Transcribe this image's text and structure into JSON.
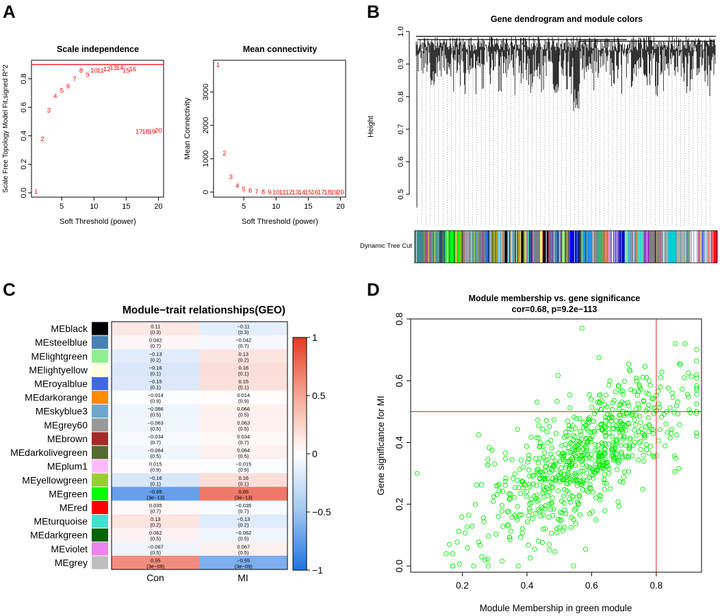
{
  "panels": {
    "A": {
      "letter": "A",
      "scale": {
        "type": "scatter-labels",
        "title": "Scale independence",
        "xlabel": "Soft Threshold (power)",
        "ylabel": "Scale Free Topology Model Fit,signed R^2",
        "xlim": [
          0.3,
          20.8
        ],
        "ylim": [
          -0.03,
          0.93
        ],
        "xticks": [
          5,
          10,
          15,
          20
        ],
        "yticks": [
          0.0,
          0.2,
          0.4,
          0.6,
          0.8
        ],
        "cutoff_line": 0.9,
        "points": [
          {
            "power": 1,
            "value": 0.01
          },
          {
            "power": 2,
            "value": 0.38
          },
          {
            "power": 3,
            "value": 0.58
          },
          {
            "power": 4,
            "value": 0.68
          },
          {
            "power": 5,
            "value": 0.72
          },
          {
            "power": 6,
            "value": 0.75
          },
          {
            "power": 7,
            "value": 0.8
          },
          {
            "power": 8,
            "value": 0.86
          },
          {
            "power": 9,
            "value": 0.83
          },
          {
            "power": 10,
            "value": 0.86
          },
          {
            "power": 11,
            "value": 0.86
          },
          {
            "power": 12,
            "value": 0.87
          },
          {
            "power": 13,
            "value": 0.88
          },
          {
            "power": 14,
            "value": 0.88
          },
          {
            "power": 15,
            "value": 0.86
          },
          {
            "power": 16,
            "value": 0.87
          },
          {
            "power": 17,
            "value": 0.43
          },
          {
            "power": 18,
            "value": 0.43
          },
          {
            "power": 19,
            "value": 0.43
          },
          {
            "power": 20,
            "value": 0.44
          }
        ]
      },
      "connectivity": {
        "type": "scatter-labels",
        "title": "Mean connectivity",
        "xlabel": "Soft Threshold (power)",
        "ylabel": "Mean Connectivity",
        "xlim": [
          0.3,
          20.8
        ],
        "ylim": [
          -150,
          3950
        ],
        "xticks": [
          5,
          10,
          15,
          20
        ],
        "yticks": [
          0,
          1000,
          2000,
          3000
        ],
        "points": [
          {
            "power": 1,
            "value": 3820
          },
          {
            "power": 2,
            "value": 1170
          },
          {
            "power": 3,
            "value": 460
          },
          {
            "power": 4,
            "value": 200
          },
          {
            "power": 5,
            "value": 100
          },
          {
            "power": 6,
            "value": 50
          },
          {
            "power": 7,
            "value": 25
          },
          {
            "power": 8,
            "value": 12
          },
          {
            "power": 9,
            "value": 6
          },
          {
            "power": 10,
            "value": 3
          },
          {
            "power": 11,
            "value": 2
          },
          {
            "power": 12,
            "value": 1
          },
          {
            "power": 13,
            "value": 0
          },
          {
            "power": 14,
            "value": 0
          },
          {
            "power": 15,
            "value": 0
          },
          {
            "power": 16,
            "value": 0
          },
          {
            "power": 17,
            "value": 0
          },
          {
            "power": 18,
            "value": 0
          },
          {
            "power": 19,
            "value": 0
          },
          {
            "power": 20,
            "value": 0
          }
        ]
      }
    },
    "B": {
      "letter": "B",
      "type": "dendrogram",
      "title": "Gene dendrogram and module colors",
      "ylabel": "Height",
      "ylim": [
        0.42,
        1.0
      ],
      "yticks": [
        0.5,
        0.6,
        0.7,
        0.8,
        0.9,
        1.0
      ],
      "colorbar_label": "Dynamic Tree Cut",
      "colorbar_segments": [
        {
          "color": "#3c8a8a",
          "weight": 4
        },
        {
          "color": "#8d6b97",
          "weight": 2
        },
        {
          "color": "#5a9e88",
          "weight": 3
        },
        {
          "color": "#2f4f6f",
          "weight": 2
        },
        {
          "color": "#00ff00",
          "weight": 6
        },
        {
          "color": "#444444",
          "weight": 1
        },
        {
          "color": "#c8a2c8",
          "weight": 2
        },
        {
          "color": "#5f9ea0",
          "weight": 3
        },
        {
          "color": "#708090",
          "weight": 3
        },
        {
          "color": "#4169e1",
          "weight": 2
        },
        {
          "color": "#8b8b00",
          "weight": 2
        },
        {
          "color": "#aaaaaa",
          "weight": 3
        },
        {
          "color": "#000000",
          "weight": 1
        },
        {
          "color": "#87cefa",
          "weight": 2
        },
        {
          "color": "#2e8b57",
          "weight": 2
        },
        {
          "color": "#ff8c00",
          "weight": 1
        },
        {
          "color": "#000000",
          "weight": 1
        },
        {
          "color": "#9acd32",
          "weight": 2
        },
        {
          "color": "#0000ff",
          "weight": 1
        },
        {
          "color": "#7f7f7f",
          "weight": 3
        },
        {
          "color": "#ffff66",
          "weight": 1
        },
        {
          "color": "#000000",
          "weight": 2
        },
        {
          "color": "#ff0000",
          "weight": 1
        },
        {
          "color": "#4682b4",
          "weight": 3
        },
        {
          "color": "#90ee90",
          "weight": 2
        },
        {
          "color": "#666666",
          "weight": 2
        },
        {
          "color": "#0000ff",
          "weight": 3
        },
        {
          "color": "#2f2f2f",
          "weight": 1
        },
        {
          "color": "#1e90ff",
          "weight": 4
        },
        {
          "color": "#8a8a8a",
          "weight": 2
        },
        {
          "color": "#3cb371",
          "weight": 2
        },
        {
          "color": "#ff6347",
          "weight": 2
        },
        {
          "color": "#dda0dd",
          "weight": 1
        },
        {
          "color": "#6a5acd",
          "weight": 3
        },
        {
          "color": "#0000cd",
          "weight": 2
        },
        {
          "color": "#48d1cc",
          "weight": 2
        },
        {
          "color": "#a0a0a0",
          "weight": 3
        },
        {
          "color": "#40e0d0",
          "weight": 2
        },
        {
          "color": "#9932cc",
          "weight": 2
        },
        {
          "color": "#808080",
          "weight": 4
        },
        {
          "color": "#a9a9a9",
          "weight": 3
        },
        {
          "color": "#00ced1",
          "weight": 3
        },
        {
          "color": "#b0b0b0",
          "weight": 3
        },
        {
          "color": "#5f9ea0",
          "weight": 2
        },
        {
          "color": "#ffffff",
          "weight": 3
        },
        {
          "color": "#7b68ee",
          "weight": 2
        },
        {
          "color": "#c0c0c0",
          "weight": 3
        },
        {
          "color": "#ff0000",
          "weight": 2
        }
      ]
    },
    "C": {
      "letter": "C",
      "type": "heatmap",
      "title": "Module−trait relationships(GEO)",
      "columns": [
        "Con",
        "MI"
      ],
      "legend_ticks": [
        "1",
        "0.5",
        "0",
        "−0.5",
        "−1"
      ],
      "rows": [
        {
          "name": "MEblack",
          "swatch": "#000000",
          "con": "0.11",
          "con_p": "(0.3)",
          "mi": "−0.11",
          "mi_p": "(0.3)",
          "con_v": 0.11,
          "mi_v": -0.11
        },
        {
          "name": "MEsteelblue",
          "swatch": "#4682b4",
          "con": "0.042",
          "con_p": "(0.7)",
          "mi": "−0.042",
          "mi_p": "(0.7)",
          "con_v": 0.042,
          "mi_v": -0.042
        },
        {
          "name": "MElightgreen",
          "swatch": "#90ee90",
          "con": "−0.13",
          "con_p": "(0.2)",
          "mi": "0.13",
          "mi_p": "(0.2)",
          "con_v": -0.13,
          "mi_v": 0.13
        },
        {
          "name": "MElightyellow",
          "swatch": "#ffffe0",
          "con": "−0.16",
          "con_p": "(0.1)",
          "mi": "0.16",
          "mi_p": "(0.1)",
          "con_v": -0.16,
          "mi_v": 0.16
        },
        {
          "name": "MEroyalblue",
          "swatch": "#4169e1",
          "con": "−0.15",
          "con_p": "(0.1)",
          "mi": "0.15",
          "mi_p": "(0.1)",
          "con_v": -0.15,
          "mi_v": 0.15
        },
        {
          "name": "MEdarkorange",
          "swatch": "#ff8c00",
          "con": "−0.014",
          "con_p": "(0.9)",
          "mi": "0.014",
          "mi_p": "(0.9)",
          "con_v": -0.014,
          "mi_v": 0.014
        },
        {
          "name": "MEskyblue3",
          "swatch": "#6ca6cd",
          "con": "−0.066",
          "con_p": "(0.5)",
          "mi": "0.066",
          "mi_p": "(0.5)",
          "con_v": -0.066,
          "mi_v": 0.066
        },
        {
          "name": "MEgrey60",
          "swatch": "#999999",
          "con": "−0.063",
          "con_p": "(0.5)",
          "mi": "0.063",
          "mi_p": "(0.5)",
          "con_v": -0.063,
          "mi_v": 0.063
        },
        {
          "name": "MEbrown",
          "swatch": "#a52a2a",
          "con": "−0.034",
          "con_p": "(0.7)",
          "mi": "0.034",
          "mi_p": "(0.7)",
          "con_v": -0.034,
          "mi_v": 0.034
        },
        {
          "name": "MEdarkolivegreen",
          "swatch": "#556b2f",
          "con": "−0.064",
          "con_p": "(0.5)",
          "mi": "0.064",
          "mi_p": "(0.5)",
          "con_v": -0.064,
          "mi_v": 0.064
        },
        {
          "name": "MEplum1",
          "swatch": "#ffbbff",
          "con": "0.015",
          "con_p": "(0.9)",
          "mi": "−0.015",
          "mi_p": "(0.9)",
          "con_v": 0.015,
          "mi_v": -0.015
        },
        {
          "name": "MEyellowgreen",
          "swatch": "#9acd32",
          "con": "−0.16",
          "con_p": "(0.1)",
          "mi": "0.16",
          "mi_p": "(0.1)",
          "con_v": -0.16,
          "mi_v": 0.16
        },
        {
          "name": "MEgreen",
          "swatch": "#00ff00",
          "con": "−0.65",
          "con_p": "(3e−13)",
          "mi": "0.65",
          "mi_p": "(3e−13)",
          "con_v": -0.65,
          "mi_v": 0.65
        },
        {
          "name": "MEred",
          "swatch": "#ff0000",
          "con": "0.035",
          "con_p": "(0.7)",
          "mi": "−0.035",
          "mi_p": "(0.7)",
          "con_v": 0.035,
          "mi_v": -0.035
        },
        {
          "name": "MEturquoise",
          "swatch": "#40e0d0",
          "con": "0.13",
          "con_p": "(0.2)",
          "mi": "−0.13",
          "mi_p": "(0.2)",
          "con_v": 0.13,
          "mi_v": -0.13
        },
        {
          "name": "MEdarkgreen",
          "swatch": "#006400",
          "con": "0.062",
          "con_p": "(0.5)",
          "mi": "−0.062",
          "mi_p": "(0.5)",
          "con_v": 0.062,
          "mi_v": -0.062
        },
        {
          "name": "MEviolet",
          "swatch": "#ee82ee",
          "con": "−0.067",
          "con_p": "(0.5)",
          "mi": "0.067",
          "mi_p": "(0.5)",
          "con_v": -0.067,
          "mi_v": 0.067
        },
        {
          "name": "MEgrey",
          "swatch": "#bebebe",
          "con": "0.55",
          "con_p": "(3e−09)",
          "mi": "−0.55",
          "mi_p": "(3e−09)",
          "con_v": 0.55,
          "mi_v": -0.55
        }
      ]
    },
    "D": {
      "letter": "D",
      "type": "scatter",
      "title": "Module membership vs. gene significance",
      "subtitle": "cor=0.68, p=9.2e−113",
      "xlabel": "Module Membership in green module",
      "ylabel": "Gene significance for MI",
      "xlim": [
        0.04,
        0.94
      ],
      "ylim": [
        -0.02,
        0.8
      ],
      "xticks": [
        "0.2",
        "0.4",
        "0.6",
        "0.8"
      ],
      "yticks": [
        "0.0",
        "0.2",
        "0.4",
        "0.6",
        "0.8"
      ],
      "vline": 0.8,
      "hline": 0.5,
      "point_color": "#00ee00",
      "n_points": 760,
      "seed": 7,
      "fit": {
        "intercept": -0.01,
        "slope": 0.63,
        "noise_sd": 0.095,
        "x_mean": 0.58,
        "x_sd": 0.16
      },
      "extra_points": [
        [
          0.06,
          0.3
        ],
        [
          0.57,
          0.77
        ],
        [
          0.16,
          0.07
        ],
        [
          0.15,
          0.04
        ],
        [
          0.17,
          0.04
        ],
        [
          0.28,
          0.0
        ],
        [
          0.26,
          0.03
        ],
        [
          0.27,
          0.02
        ]
      ]
    }
  }
}
